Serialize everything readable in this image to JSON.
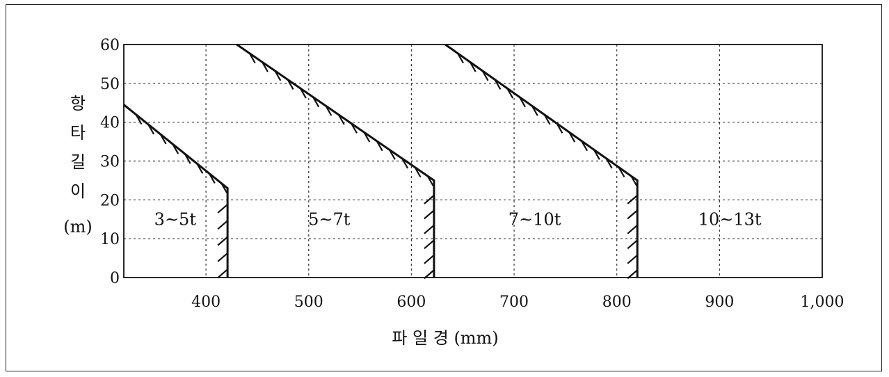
{
  "chart_data": {
    "type": "line",
    "xlabel": "파 일 경 (mm)",
    "ylabel_chars": [
      "항",
      "타",
      "길",
      "이",
      "(m)"
    ],
    "xlim": [
      320,
      1000
    ],
    "ylim": [
      0,
      60
    ],
    "x_ticks": [
      400,
      500,
      600,
      700,
      800,
      900,
      1000
    ],
    "x_tick_labels": [
      "400",
      "500",
      "600",
      "700",
      "800",
      "900",
      "1,000"
    ],
    "y_ticks": [
      0,
      10,
      20,
      30,
      40,
      50,
      60
    ],
    "y_tick_labels": [
      "0",
      "10",
      "20",
      "30",
      "40",
      "50",
      "60"
    ],
    "grid": true,
    "series": [
      {
        "boundary_points": [
          [
            320,
            44.5
          ],
          [
            421,
            23
          ],
          [
            421,
            0
          ]
        ]
      },
      {
        "boundary_points": [
          [
            430,
            60
          ],
          [
            622,
            25
          ],
          [
            622,
            0
          ]
        ]
      },
      {
        "boundary_points": [
          [
            633,
            60
          ],
          [
            820,
            25
          ],
          [
            820,
            0
          ]
        ]
      }
    ],
    "regions": [
      {
        "label": "3~5t",
        "x": 370,
        "y": 15
      },
      {
        "label": "5~7t",
        "x": 520,
        "y": 15
      },
      {
        "label": "7~10t",
        "x": 720,
        "y": 15
      },
      {
        "label": "10~13t",
        "x": 910,
        "y": 15
      }
    ]
  }
}
